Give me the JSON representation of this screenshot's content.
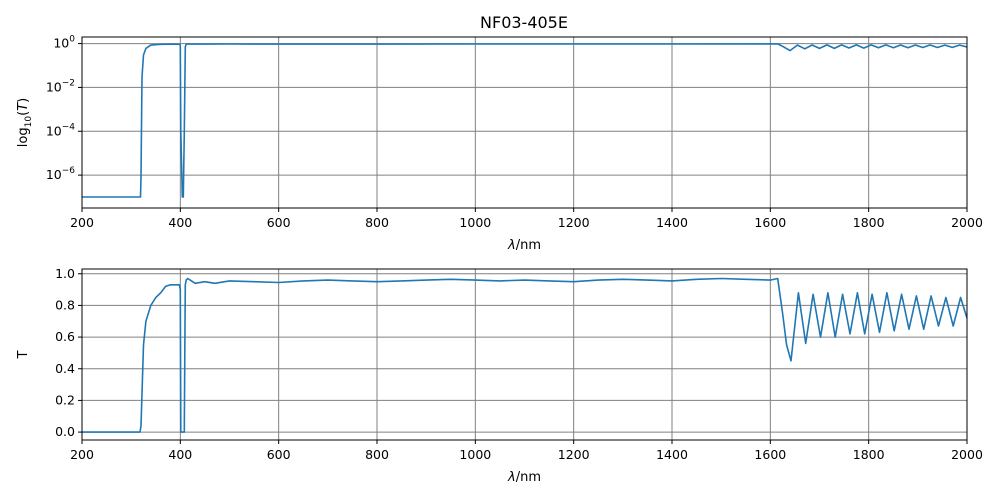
{
  "title": "NF03-405E",
  "colors": {
    "series": "#1f77b4",
    "grid": "#808080",
    "axes": "#000000"
  },
  "chart_data": [
    {
      "type": "line",
      "yscale": "log",
      "ylabel_parts": [
        "log",
        "10",
        "(",
        "T",
        ")"
      ],
      "xlabel_parts": [
        "λ",
        "/nm"
      ],
      "xlim": [
        200,
        2000
      ],
      "ylim_log10": [
        -7.5,
        0.3
      ],
      "grid": true,
      "xticks": [
        "200",
        "400",
        "600",
        "800",
        "1000",
        "1200",
        "1400",
        "1600",
        "1800",
        "2000"
      ],
      "yticks": [
        {
          "value": -6,
          "base": "10",
          "exp": "−6"
        },
        {
          "value": -4,
          "base": "10",
          "exp": "−4"
        },
        {
          "value": -2,
          "base": "10",
          "exp": "−2"
        },
        {
          "value": 0,
          "base": "10",
          "exp": "0"
        }
      ],
      "series": [
        {
          "x": [
            200,
            318,
            319,
            320,
            322,
            325,
            330,
            340,
            360,
            380,
            398,
            399,
            400,
            401,
            404,
            406,
            408,
            410,
            412,
            415,
            420,
            450,
            500,
            600,
            800,
            1000,
            1200,
            1400,
            1600,
            1615,
            1625,
            1640,
            1655,
            1670,
            1685,
            1700,
            1715,
            1730,
            1745,
            1760,
            1775,
            1790,
            1805,
            1820,
            1835,
            1850,
            1865,
            1880,
            1895,
            1910,
            1925,
            1940,
            1955,
            1970,
            1985,
            2000
          ],
          "y": [
            1e-07,
            1e-07,
            1e-07,
            8e-07,
            0.03,
            0.3,
            0.6,
            0.85,
            0.93,
            0.94,
            0.94,
            0.92,
            0.8,
            0.0001,
            1e-07,
            1e-07,
            0.0001,
            0.7,
            0.95,
            0.97,
            0.95,
            0.95,
            0.96,
            0.95,
            0.95,
            0.96,
            0.96,
            0.96,
            0.97,
            0.97,
            0.75,
            0.48,
            0.85,
            0.58,
            0.86,
            0.6,
            0.87,
            0.6,
            0.87,
            0.63,
            0.87,
            0.62,
            0.87,
            0.64,
            0.87,
            0.65,
            0.86,
            0.64,
            0.86,
            0.66,
            0.86,
            0.66,
            0.85,
            0.67,
            0.85,
            0.7
          ]
        }
      ]
    },
    {
      "type": "line",
      "yscale": "linear",
      "ylabel": "T",
      "xlabel_parts": [
        "λ",
        "/nm"
      ],
      "xlim": [
        200,
        2000
      ],
      "ylim": [
        -0.05,
        1.03
      ],
      "grid": true,
      "xticks": [
        "200",
        "400",
        "600",
        "800",
        "1000",
        "1200",
        "1400",
        "1600",
        "1800",
        "2000"
      ],
      "yticks": [
        "0.0",
        "0.2",
        "0.4",
        "0.6",
        "0.8",
        "1.0"
      ],
      "series": [
        {
          "x": [
            200,
            318,
            320,
            325,
            330,
            340,
            350,
            360,
            370,
            380,
            398,
            400,
            401,
            402,
            408,
            409,
            410,
            412,
            415,
            420,
            430,
            450,
            470,
            500,
            550,
            600,
            650,
            700,
            750,
            800,
            850,
            900,
            950,
            1000,
            1050,
            1100,
            1150,
            1200,
            1250,
            1300,
            1350,
            1400,
            1450,
            1500,
            1550,
            1600,
            1615,
            1625,
            1633,
            1642,
            1657,
            1672,
            1687,
            1702,
            1717,
            1732,
            1747,
            1762,
            1777,
            1792,
            1807,
            1822,
            1837,
            1852,
            1867,
            1882,
            1897,
            1912,
            1927,
            1942,
            1957,
            1972,
            1987,
            2000
          ],
          "y": [
            0.0,
            0.0,
            0.04,
            0.55,
            0.7,
            0.8,
            0.85,
            0.88,
            0.92,
            0.93,
            0.93,
            0.9,
            0.0,
            0.0,
            0.0,
            0.5,
            0.93,
            0.96,
            0.97,
            0.96,
            0.94,
            0.95,
            0.94,
            0.955,
            0.95,
            0.945,
            0.955,
            0.96,
            0.955,
            0.95,
            0.955,
            0.96,
            0.965,
            0.96,
            0.955,
            0.96,
            0.955,
            0.95,
            0.96,
            0.965,
            0.96,
            0.955,
            0.965,
            0.97,
            0.965,
            0.96,
            0.97,
            0.75,
            0.55,
            0.45,
            0.88,
            0.56,
            0.87,
            0.6,
            0.88,
            0.6,
            0.87,
            0.62,
            0.88,
            0.62,
            0.87,
            0.63,
            0.88,
            0.64,
            0.87,
            0.65,
            0.86,
            0.65,
            0.86,
            0.67,
            0.85,
            0.67,
            0.85,
            0.72
          ]
        }
      ]
    }
  ]
}
